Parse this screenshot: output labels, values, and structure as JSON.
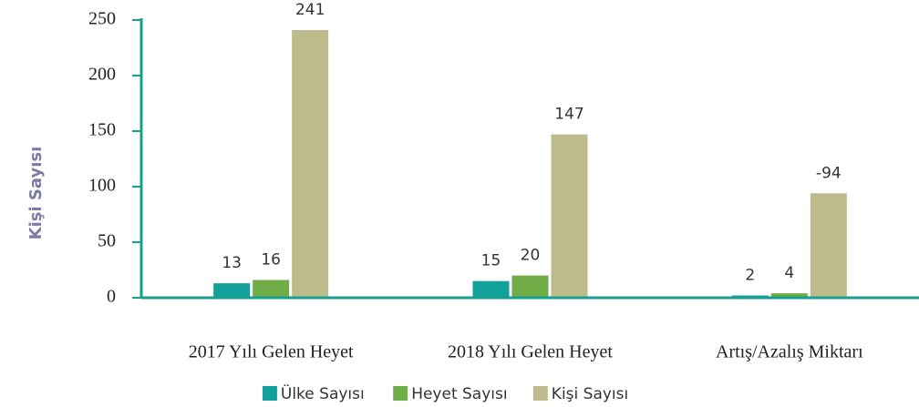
{
  "chart_data": {
    "type": "bar",
    "y_label": "Kişi Sayısı",
    "categories": [
      "2017 Yılı Gelen Heyet",
      "2018 Yılı Gelen Heyet",
      "Artış/Azalış Miktarı"
    ],
    "series": [
      {
        "name": "Ülke Sayısı",
        "color": "#11a09a",
        "values": [
          13,
          15,
          2
        ]
      },
      {
        "name": "Heyet Sayısı",
        "color": "#70ad47",
        "values": [
          16,
          20,
          4
        ]
      },
      {
        "name": "Kişi Sayısı",
        "color": "#bdbb8c",
        "values": [
          241,
          147,
          94
        ],
        "value_labels": [
          "241",
          "147",
          "-94"
        ]
      }
    ],
    "ylim": [
      0,
      250
    ],
    "yticks": [
      0,
      50,
      100,
      150,
      200,
      250
    ],
    "axis_color": "#16a08f"
  }
}
